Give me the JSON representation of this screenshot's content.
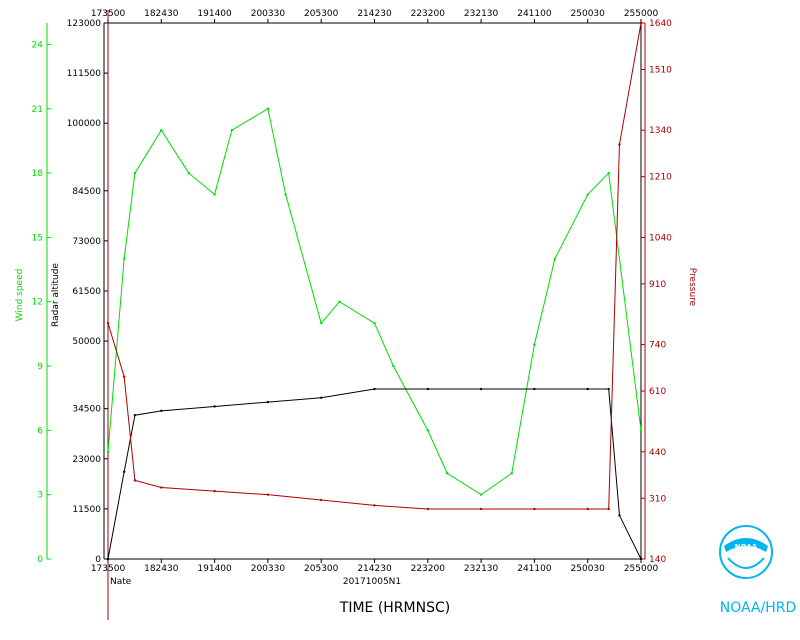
{
  "chart_data": {
    "type": "line",
    "storm_name": "Nate",
    "flight_id": "20171005N1",
    "xlabel": "TIME (HRMNSC)",
    "logo_text": "NOAA/HRD",
    "x_ticks": [
      "173500",
      "182430",
      "191400",
      "200330",
      "205300",
      "214230",
      "223200",
      "232130",
      "241100",
      "250030",
      "255000"
    ],
    "x_range": [
      "173500",
      "255000"
    ],
    "axes": [
      {
        "name": "Wind speed",
        "side": "left-outer",
        "color": "#00dd00",
        "ticks": [
          "0",
          "3",
          "6",
          "9",
          "12",
          "15",
          "18",
          "21",
          "24"
        ],
        "ylim": [
          0,
          25
        ]
      },
      {
        "name": "Radar altitude",
        "side": "left-inner",
        "color": "#000000",
        "ticks": [
          "0",
          "11500",
          "23000",
          "34500",
          "50000",
          "61500",
          "73000",
          "84500",
          "100000",
          "111500",
          "123000"
        ],
        "ylim": [
          0,
          123000
        ]
      },
      {
        "name": "Pressure",
        "side": "right",
        "color": "#aa0000",
        "ticks": [
          "140",
          "310",
          "440",
          "610",
          "740",
          "910",
          "1040",
          "1210",
          "1340",
          "1510",
          "1640"
        ],
        "ylim": [
          140,
          1640
        ]
      }
    ],
    "series": [
      {
        "name": "Wind speed",
        "color": "#00dd00",
        "x": [
          "173500",
          "175000",
          "180000",
          "182430",
          "185000",
          "191400",
          "193000",
          "200330",
          "202000",
          "205300",
          "211000",
          "214230",
          "220000",
          "223200",
          "225000",
          "232130",
          "235000",
          "241100",
          "243000",
          "250030",
          "252000",
          "255000"
        ],
        "values": [
          5,
          14,
          18,
          20,
          18,
          17,
          20,
          21,
          17,
          11,
          12,
          11,
          9,
          6,
          4,
          3,
          4,
          10,
          14,
          17,
          18,
          6
        ]
      },
      {
        "name": "Radar altitude",
        "color": "#000000",
        "x": [
          "173500",
          "175000",
          "180000",
          "182430",
          "191400",
          "200330",
          "205300",
          "214230",
          "223200",
          "232130",
          "241100",
          "250030",
          "252000",
          "253000",
          "255000"
        ],
        "values": [
          0,
          20000,
          33000,
          34000,
          35000,
          36000,
          37000,
          39000,
          39000,
          39000,
          39000,
          39000,
          39000,
          10000,
          0
        ]
      },
      {
        "name": "Pressure",
        "color": "#aa0000",
        "x": [
          "173500",
          "175000",
          "180000",
          "182430",
          "191400",
          "200330",
          "205300",
          "214230",
          "223200",
          "232130",
          "241100",
          "250030",
          "252000",
          "253000",
          "255000"
        ],
        "values": [
          800,
          650,
          360,
          340,
          330,
          320,
          305,
          290,
          280,
          280,
          280,
          280,
          280,
          1300,
          1640
        ]
      }
    ]
  }
}
